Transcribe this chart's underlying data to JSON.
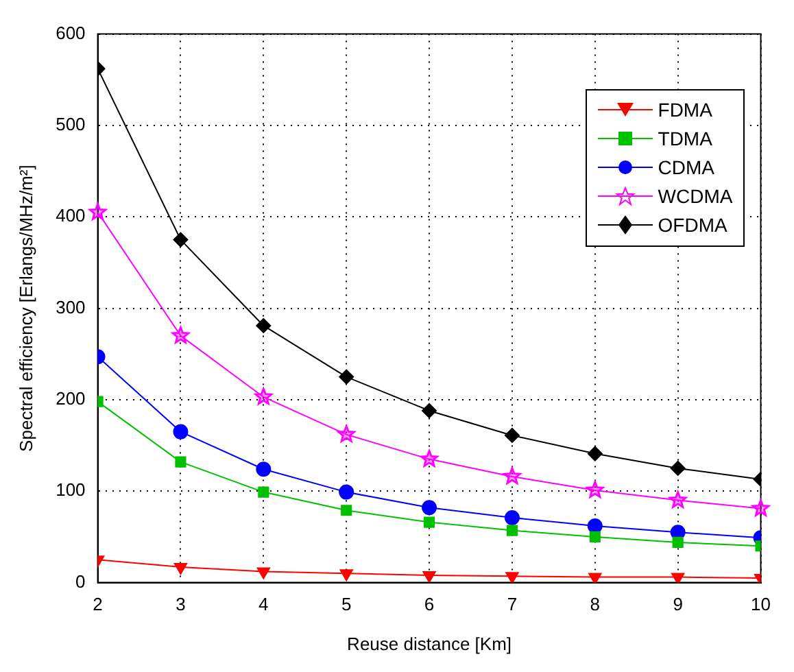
{
  "chart_data": {
    "type": "line",
    "xlabel": "Reuse distance [Km]",
    "ylabel": "Spectral efficiency [Erlangs/MHz/m²]",
    "x": [
      2,
      3,
      4,
      5,
      6,
      7,
      8,
      9,
      10
    ],
    "xlim": [
      2,
      10
    ],
    "xticks": [
      2,
      3,
      4,
      5,
      6,
      7,
      8,
      9,
      10
    ],
    "ylim": [
      0,
      600
    ],
    "yticks": [
      0,
      100,
      200,
      300,
      400,
      500,
      600
    ],
    "grid": true,
    "legend": "top right",
    "line_style": "solid",
    "series": [
      {
        "name": "FDMA",
        "color": "#ff0000",
        "marker": "triangle",
        "values": [
          25,
          17,
          12,
          10,
          8,
          7,
          6,
          6,
          5
        ]
      },
      {
        "name": "TDMA",
        "color": "#00c000",
        "marker": "square",
        "values": [
          198,
          132,
          99,
          79,
          66,
          57,
          50,
          44,
          40
        ]
      },
      {
        "name": "CDMA",
        "color": "#0000ff",
        "marker": "circle",
        "values": [
          247,
          165,
          124,
          99,
          82,
          71,
          62,
          55,
          49
        ]
      },
      {
        "name": "WCDMA",
        "color": "#ff00ff",
        "marker": "star",
        "values": [
          405,
          270,
          203,
          162,
          135,
          116,
          101,
          90,
          81
        ]
      },
      {
        "name": "OFDMA",
        "color": "#000000",
        "marker": "diamond",
        "values": [
          562,
          375,
          281,
          225,
          188,
          161,
          141,
          125,
          113
        ]
      }
    ]
  }
}
